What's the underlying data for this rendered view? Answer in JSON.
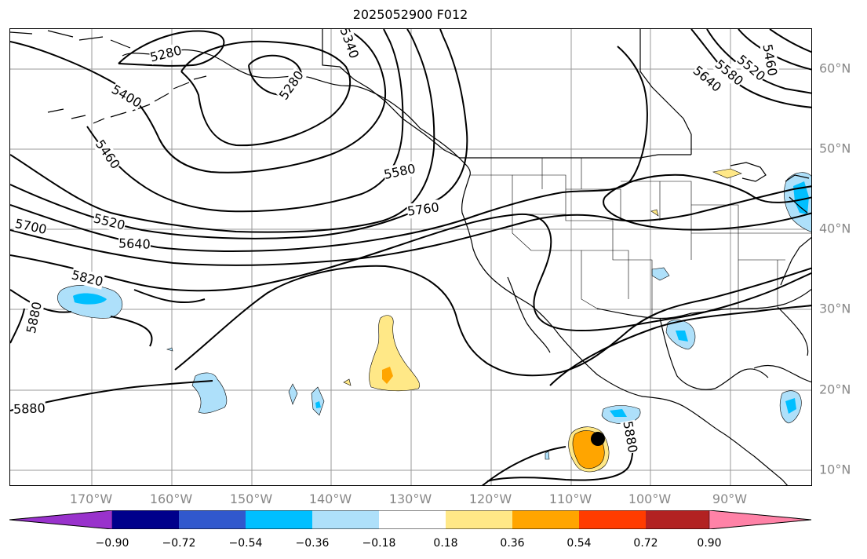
{
  "title": "2025052900 F012",
  "longitude_labels": [
    "170°W",
    "160°W",
    "150°W",
    "140°W",
    "130°W",
    "120°W",
    "110°W",
    "100°W",
    "90°W"
  ],
  "latitude_labels": [
    "60°N",
    "50°N",
    "40°N",
    "30°N",
    "20°N",
    "10°N"
  ],
  "contour_labels": [
    {
      "text": "5280"
    },
    {
      "text": "5280"
    },
    {
      "text": "5340"
    },
    {
      "text": "5400"
    },
    {
      "text": "5460"
    },
    {
      "text": "5520"
    },
    {
      "text": "5580"
    },
    {
      "text": "5640"
    },
    {
      "text": "5700"
    },
    {
      "text": "5760"
    },
    {
      "text": "5820"
    },
    {
      "text": "5880"
    },
    {
      "text": "5880"
    },
    {
      "text": "5880"
    },
    {
      "text": "5640"
    },
    {
      "text": "5580"
    },
    {
      "text": "5520"
    },
    {
      "text": "5460"
    }
  ],
  "colorbar": {
    "ticks": [
      "−0.90",
      "−0.72",
      "−0.54",
      "−0.36",
      "−0.18",
      "0.18",
      "0.36",
      "0.54",
      "0.72",
      "0.90"
    ],
    "colors": [
      "#9932cc",
      "#00008b",
      "#3158cd",
      "#00bfff",
      "#aee0fa",
      "#ffffff",
      "#ffe887",
      "#ffa500",
      "#ff3c00",
      "#b22222",
      "#ff82a7"
    ]
  },
  "colors": {
    "grid": "#999999",
    "contour": "#000000",
    "light_blue": "#aee0fa",
    "deep_sky_blue": "#00bfff",
    "light_yellow": "#ffe887",
    "orange": "#ffa500"
  },
  "marker": "black-dot"
}
